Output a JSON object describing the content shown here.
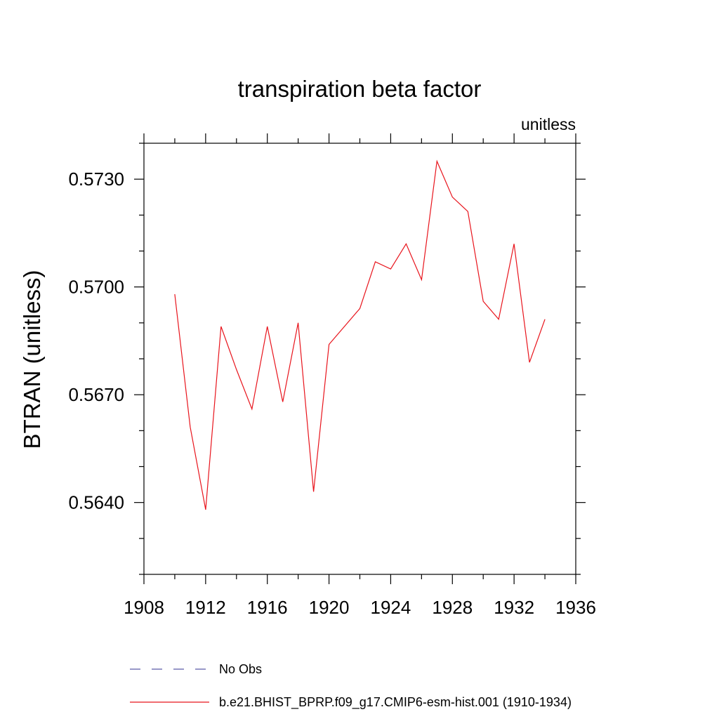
{
  "chart_data": {
    "type": "line",
    "title": "transpiration beta factor",
    "units_label": "unitless",
    "xlabel": "",
    "ylabel": "BTRAN  (unitless)",
    "xlim": [
      1908,
      1936
    ],
    "ylim": [
      0.562,
      0.574
    ],
    "x_ticks": [
      1908,
      1912,
      1916,
      1920,
      1924,
      1928,
      1932,
      1936
    ],
    "x_tick_labels": [
      "1908",
      "1912",
      "1916",
      "1920",
      "1924",
      "1928",
      "1932",
      "1936"
    ],
    "y_ticks": [
      0.564,
      0.567,
      0.57,
      0.573
    ],
    "y_tick_labels": [
      "0.5640",
      "0.5670",
      "0.5700",
      "0.5730"
    ],
    "grid": false,
    "legend_position": "bottom",
    "series": [
      {
        "name": "b.e21.BHIST_BPRP.f09_g17.CMIP6-esm-hist.001 (1910-1934)",
        "color": "#e8141c",
        "style": "solid",
        "x": [
          1910,
          1911,
          1912,
          1913,
          1914,
          1915,
          1916,
          1917,
          1918,
          1919,
          1920,
          1921,
          1922,
          1923,
          1924,
          1925,
          1926,
          1927,
          1928,
          1929,
          1930,
          1931,
          1932,
          1933,
          1934
        ],
        "values": [
          0.5698,
          0.5661,
          0.5638,
          0.5689,
          0.5677,
          0.5666,
          0.5689,
          0.5668,
          0.569,
          0.5643,
          0.5684,
          0.5689,
          0.5694,
          0.5707,
          0.5705,
          0.5712,
          0.5702,
          0.5735,
          0.5725,
          0.5721,
          0.5696,
          0.5691,
          0.5712,
          0.5679,
          0.5691
        ]
      }
    ],
    "legend": [
      {
        "label": "No Obs",
        "color": "#5a5aa8",
        "style": "dashed"
      },
      {
        "label": "b.e21.BHIST_BPRP.f09_g17.CMIP6-esm-hist.001 (1910-1934)",
        "color": "#e8141c",
        "style": "solid"
      }
    ]
  }
}
